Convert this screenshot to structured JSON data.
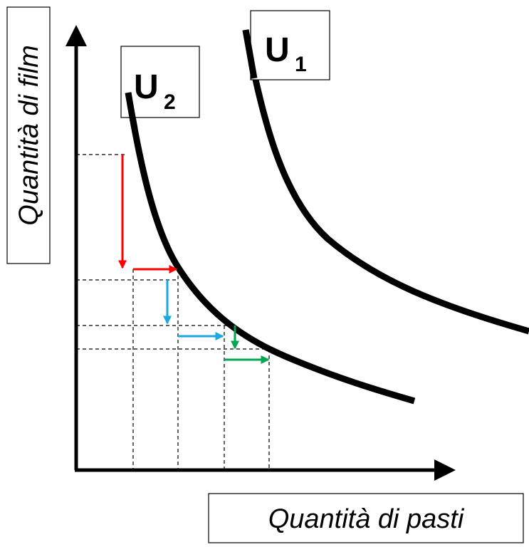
{
  "axes": {
    "y_label": "Quantità di film",
    "x_label": "Quantità di pasti"
  },
  "curves": [
    {
      "label": "U",
      "subscript": "1"
    },
    {
      "label": "U",
      "subscript": "2"
    }
  ]
}
